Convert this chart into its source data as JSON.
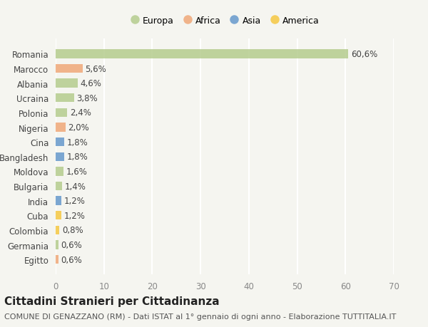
{
  "countries": [
    "Romania",
    "Marocco",
    "Albania",
    "Ucraina",
    "Polonia",
    "Nigeria",
    "Cina",
    "Bangladesh",
    "Moldova",
    "Bulgaria",
    "India",
    "Cuba",
    "Colombia",
    "Germania",
    "Egitto"
  ],
  "values": [
    60.6,
    5.6,
    4.6,
    3.8,
    2.4,
    2.0,
    1.8,
    1.8,
    1.6,
    1.4,
    1.2,
    1.2,
    0.8,
    0.6,
    0.6
  ],
  "labels": [
    "60,6%",
    "5,6%",
    "4,6%",
    "3,8%",
    "2,4%",
    "2,0%",
    "1,8%",
    "1,8%",
    "1,6%",
    "1,4%",
    "1,2%",
    "1,2%",
    "0,8%",
    "0,6%",
    "0,6%"
  ],
  "continents": [
    "Europa",
    "Africa",
    "Europa",
    "Europa",
    "Europa",
    "Africa",
    "Asia",
    "Asia",
    "Europa",
    "Europa",
    "Asia",
    "America",
    "America",
    "Europa",
    "Africa"
  ],
  "continent_colors": {
    "Europa": "#b5cc8e",
    "Africa": "#f0a878",
    "Asia": "#6699cc",
    "America": "#f5c842"
  },
  "legend_order": [
    "Europa",
    "Africa",
    "Asia",
    "America"
  ],
  "legend_colors": [
    "#b5cc8e",
    "#f0a878",
    "#6699cc",
    "#f5c842"
  ],
  "xlim": [
    0,
    70
  ],
  "xticks": [
    0,
    10,
    20,
    30,
    40,
    50,
    60,
    70
  ],
  "background_color": "#f5f5f0",
  "title": "Cittadini Stranieri per Cittadinanza",
  "subtitle": "COMUNE DI GENAZZANO (RM) - Dati ISTAT al 1° gennaio di ogni anno - Elaborazione TUTTITALIA.IT",
  "title_fontsize": 11,
  "subtitle_fontsize": 8,
  "bar_height": 0.6,
  "grid_color": "#ffffff"
}
